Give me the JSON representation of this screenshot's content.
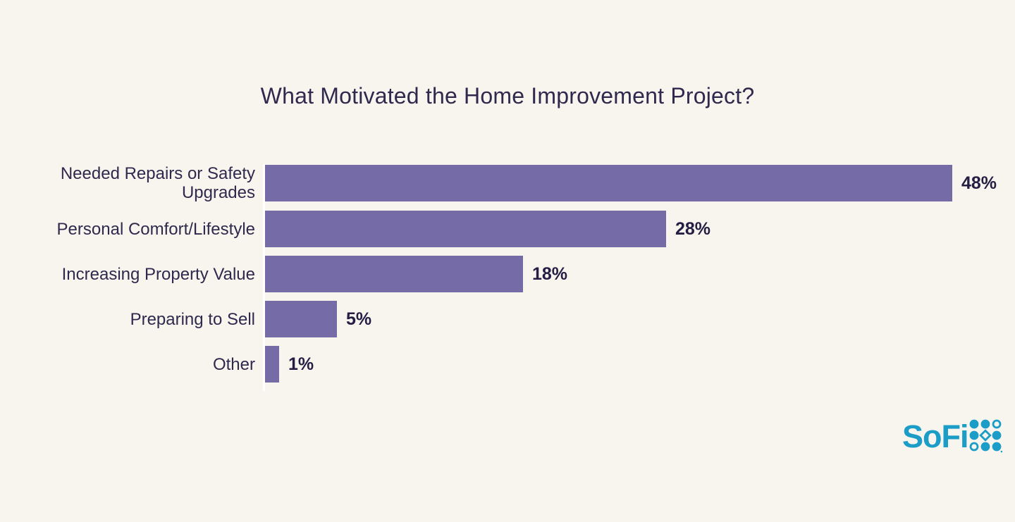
{
  "page": {
    "background": "#F8F5EE"
  },
  "chart_data": {
    "type": "bar",
    "orientation": "horizontal",
    "title": "What Motivated the Home Improvement Project?",
    "categories": [
      "Needed Repairs or Safety Upgrades",
      "Personal Comfort/Lifestyle",
      "Increasing Property Value",
      "Preparing to Sell",
      "Other"
    ],
    "values": [
      48,
      28,
      18,
      5,
      1
    ],
    "value_labels": [
      "48%",
      "28%",
      "18%",
      "5%",
      "1%"
    ],
    "xlim": [
      0,
      50
    ],
    "grid": false,
    "legend": false,
    "bar_color": "#756BA6",
    "label_color": "#2F294D",
    "value_label_color": "#241D44",
    "axis_line_color": "#FFFFFF"
  },
  "branding": {
    "logo_text": "SoFi",
    "logo_color": "#1B9DC7"
  }
}
